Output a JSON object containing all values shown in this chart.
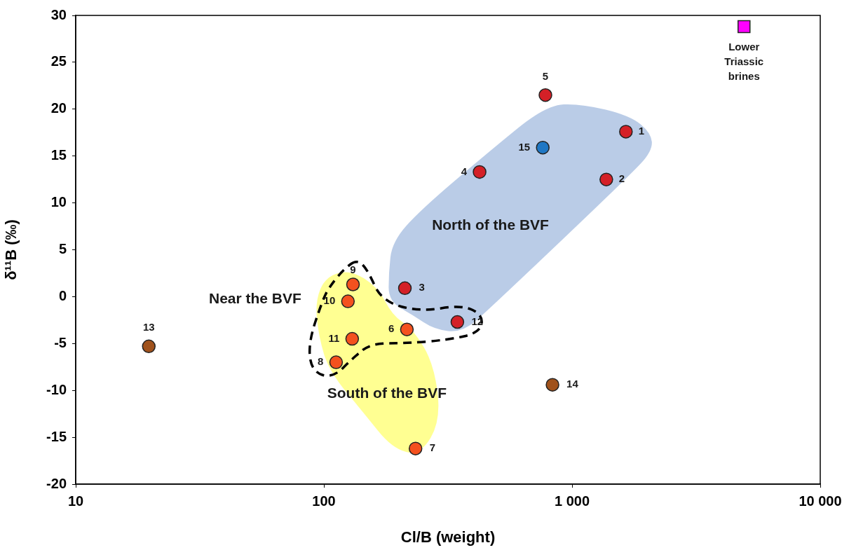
{
  "chart_data": {
    "type": "scatter",
    "xlabel": "Cl/B (weight)",
    "ylabel": "δ¹¹B (‰)",
    "log": "x",
    "xlim": [
      10,
      10000
    ],
    "xticks": [
      10,
      100,
      {
        "value": 1000,
        "label": "1 000"
      },
      {
        "value": 10000,
        "label": "10 000"
      }
    ],
    "ylim": [
      -20,
      30
    ],
    "yticks": [
      -20,
      -15,
      -10,
      -5,
      0,
      5,
      10,
      15,
      20,
      25,
      30
    ],
    "grid": false,
    "legend": false,
    "marker": "circle",
    "series": [
      {
        "color": "#d42027",
        "x": [
          1648,
          1374,
          212,
          424,
          781,
          345
        ],
        "values": [
          17.6,
          12.5,
          0.9,
          13.3,
          21.5,
          -2.7
        ]
      },
      {
        "color": "#f4511e",
        "x": [
          216,
          234,
          112,
          131,
          125,
          130
        ],
        "values": [
          -3.5,
          -16.2,
          -7,
          1.3,
          -0.5,
          -4.5
        ]
      },
      {
        "color": "#1f77c4",
        "x": [
          762
        ],
        "values": [
          15.9
        ]
      },
      {
        "color": "#a0521c",
        "x": [
          19.7,
          834
        ],
        "values": [
          -5.3,
          -9.4
        ]
      },
      {
        "name": "Lower Triassic brines",
        "color": "#ff00ff",
        "marker": "square",
        "x": [
          4930
        ],
        "values": [
          28.8
        ]
      }
    ],
    "annotations": [
      {
        "text": "1",
        "x": 1648,
        "y": 17.6
      },
      {
        "text": "2",
        "x": 1374,
        "y": 12.5
      },
      {
        "text": "3",
        "x": 212,
        "y": 0.9
      },
      {
        "text": "4",
        "x": 424,
        "y": 13.3
      },
      {
        "text": "5",
        "x": 781,
        "y": 21.5
      },
      {
        "text": "6",
        "x": 216,
        "y": -3.5
      },
      {
        "text": "7",
        "x": 234,
        "y": -16.2
      },
      {
        "text": "8",
        "x": 112,
        "y": -7
      },
      {
        "text": "9",
        "x": 131,
        "y": 1.3
      },
      {
        "text": "10",
        "x": 125,
        "y": -0.5
      },
      {
        "text": "11",
        "x": 130,
        "y": -4.5
      },
      {
        "text": "12",
        "x": 345,
        "y": -2.7
      },
      {
        "text": "13",
        "x": 19.7,
        "y": -5.3
      },
      {
        "text": "14",
        "x": 834,
        "y": -9.4
      },
      {
        "text": "15",
        "x": 762,
        "y": 15.9
      },
      "North of the BVF",
      "Near the BVF",
      "South of the BVF"
    ]
  }
}
